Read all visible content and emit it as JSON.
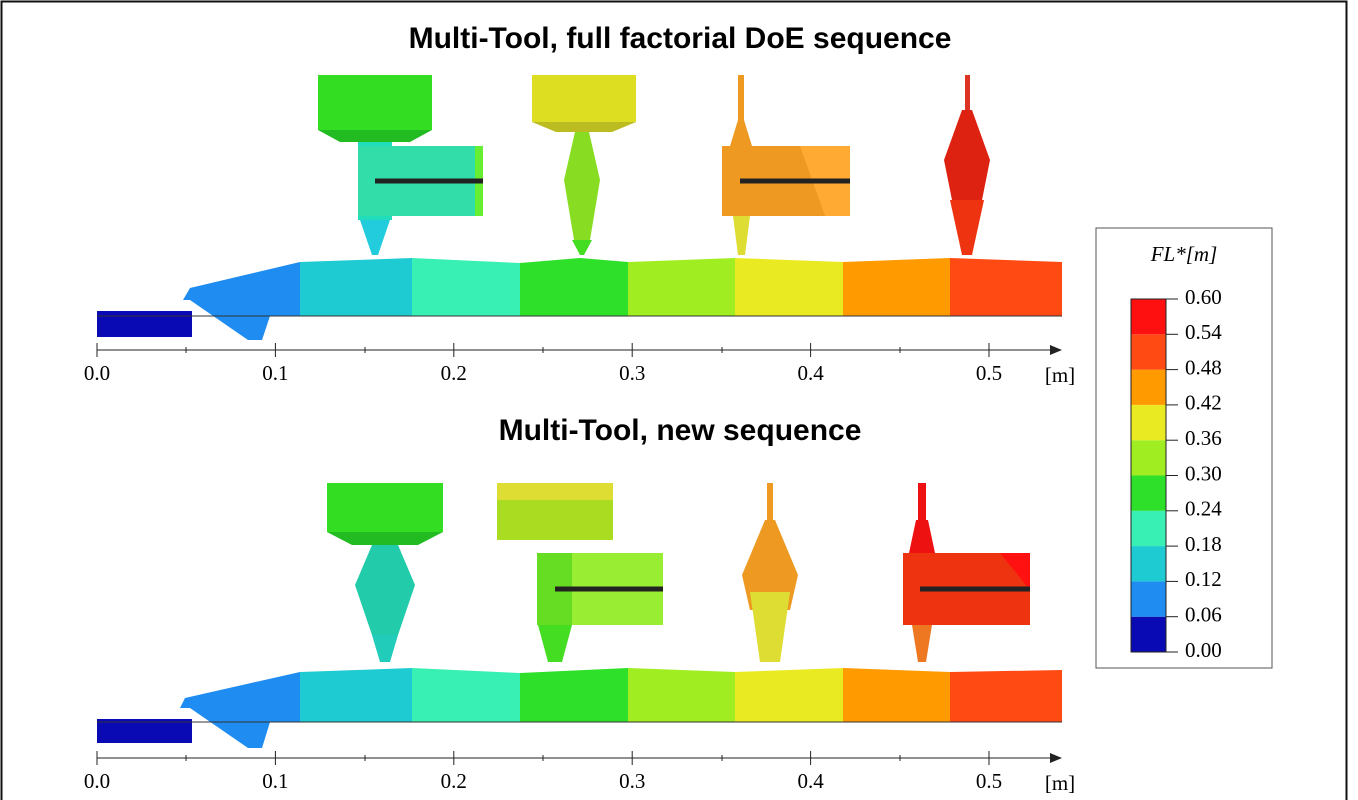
{
  "panels": [
    {
      "title": "Multi-Tool, full factorial DoE sequence",
      "axis": {
        "ticks": [
          {
            "value": 0,
            "label": "0.0"
          },
          0.1,
          0.2,
          0.3,
          0.4,
          0.5
        ],
        "unit": "[m]"
      }
    },
    {
      "title": "Multi-Tool, new sequence",
      "axis": {
        "ticks": [
          {
            "value": 0,
            "label": "0.0"
          },
          0.1,
          0.2,
          0.3,
          0.4,
          0.5
        ],
        "unit": "[m]"
      }
    }
  ],
  "colorbar": {
    "label": "FL*[m]",
    "ticks": [
      {
        "value": 0,
        "label": "0.00"
      },
      0.06,
      0.12,
      0.18,
      0.24,
      {
        "value": 0.3,
        "label": "0.30"
      },
      0.36,
      0.42,
      0.48,
      0.54,
      {
        "value": 0.6,
        "label": "0.60"
      }
    ],
    "colors": [
      "#0a0ab4",
      "#1e8cf0",
      "#1ecbd2",
      "#38f0b4",
      "#2ee02a",
      "#a0ee22",
      "#eaea22",
      "#ff9a00",
      "#ff4a14",
      "#ff1010"
    ]
  }
}
